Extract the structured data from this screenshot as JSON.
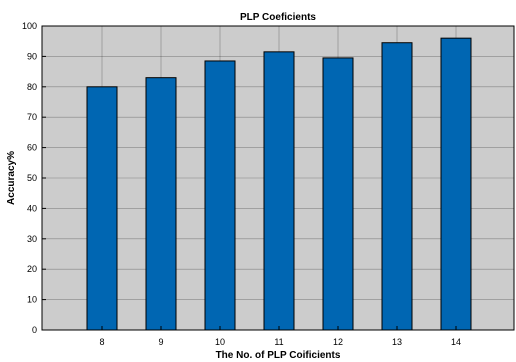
{
  "chart_data": {
    "type": "bar",
    "title": "PLP Coeficients",
    "xlabel": "The No. of PLP Coificients",
    "ylabel": "Accuracy%",
    "categories": [
      "8",
      "9",
      "10",
      "11",
      "12",
      "13",
      "14"
    ],
    "values": [
      80,
      83,
      88.5,
      91.5,
      89.5,
      94.5,
      96
    ],
    "ylim": [
      0,
      100
    ],
    "yticks": [
      "0",
      "10",
      "20",
      "30",
      "40",
      "50",
      "60",
      "70",
      "80",
      "90",
      "100"
    ],
    "grid": true,
    "bar_color": "#0066b2",
    "background_color": "#cccccc"
  }
}
